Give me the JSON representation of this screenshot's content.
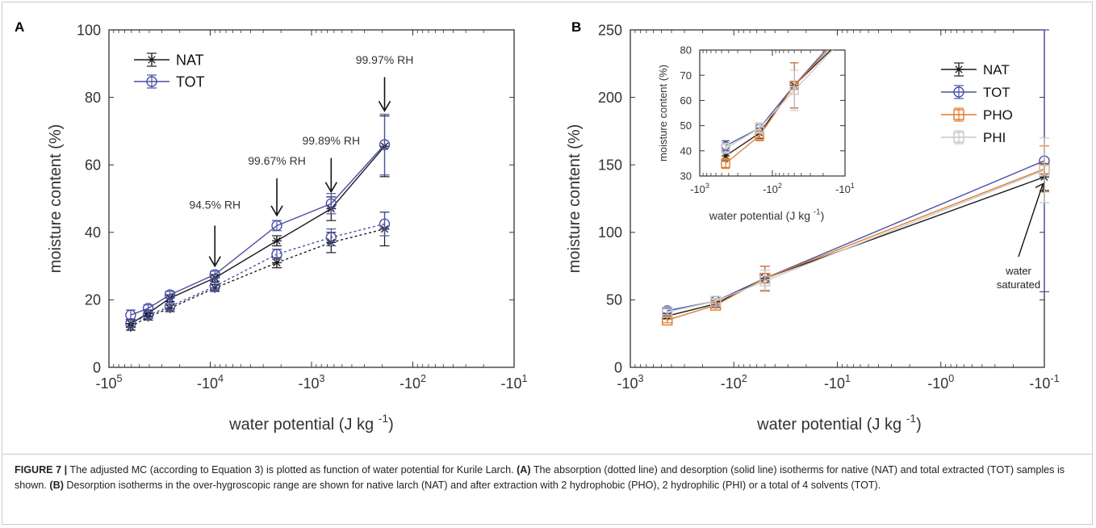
{
  "colors": {
    "NAT": "#1a1a1a",
    "TOT": "#4a4fa3",
    "PHO": "#e07b2e",
    "PHI": "#c8c8c8",
    "arrow": "#111111"
  },
  "chart_data": [
    {
      "panel": "A",
      "type": "line",
      "xlabel": "water potential (J kg",
      "xlabel_sup": "-1",
      "xlabel_close": ")",
      "ylabel": "moisture content (%)",
      "x_scale": "log of negative water potential",
      "xlim": [
        -100000,
        -10
      ],
      "ylim": [
        0,
        100
      ],
      "xticks": [
        {
          "v": -100000,
          "base": "-10",
          "exp": "5"
        },
        {
          "v": -10000,
          "base": "-10",
          "exp": "4"
        },
        {
          "v": -1000,
          "base": "-10",
          "exp": "3"
        },
        {
          "v": -100,
          "base": "-10",
          "exp": "2"
        },
        {
          "v": -10,
          "base": "-10",
          "exp": "1"
        }
      ],
      "yticks": [
        0,
        20,
        40,
        60,
        80,
        100
      ],
      "legend": [
        {
          "name": "NAT",
          "marker": "star"
        },
        {
          "name": "TOT",
          "marker": "circle"
        }
      ],
      "series": [
        {
          "name": "NAT",
          "curve": "desorption",
          "style": "solid",
          "marker": "star",
          "x": [
            -61000,
            -41000,
            -25000,
            -9000,
            -2200,
            -640,
            -190
          ],
          "y": [
            13,
            16,
            20.5,
            26.5,
            37.5,
            47,
            65.5
          ],
          "err": [
            1.2,
            1,
            1,
            1,
            1.5,
            3.5,
            9
          ]
        },
        {
          "name": "TOT",
          "curve": "desorption",
          "style": "solid",
          "marker": "circle",
          "x": [
            -61000,
            -41000,
            -25000,
            -9000,
            -2200,
            -640,
            -190
          ],
          "y": [
            15.5,
            17.5,
            21.5,
            27.5,
            42,
            48.5,
            66
          ],
          "err": [
            1.5,
            1,
            1,
            1,
            1.5,
            3,
            9
          ]
        },
        {
          "name": "NAT",
          "curve": "absorption",
          "style": "dotted",
          "marker": "star",
          "x": [
            -61000,
            -41000,
            -25000,
            -9000,
            -2200,
            -640,
            -190
          ],
          "y": [
            12,
            15,
            17.5,
            23.5,
            31,
            37,
            41
          ],
          "err": [
            1,
            1,
            1,
            1,
            1.5,
            3,
            5
          ]
        },
        {
          "name": "TOT",
          "curve": "absorption",
          "style": "dotted",
          "marker": "circle",
          "x": [
            -61000,
            -41000,
            -25000,
            -9000,
            -2200,
            -640,
            -190
          ],
          "y": [
            13,
            15.5,
            18,
            24,
            33.5,
            38.5,
            42.5
          ],
          "err": [
            1,
            1,
            1,
            1,
            1.5,
            2.5,
            3.5
          ]
        }
      ],
      "annotations": [
        {
          "text": "94.5% RH",
          "x": -9000,
          "y_arrow_tip": 30,
          "y_arrow_top": 42,
          "y_text": 47
        },
        {
          "text": "99.67% RH",
          "x": -2200,
          "y_arrow_tip": 45,
          "y_arrow_top": 56,
          "y_text": 60
        },
        {
          "text": "99.89% RH",
          "x": -640,
          "y_arrow_tip": 52,
          "y_arrow_top": 62,
          "y_text": 66
        },
        {
          "text": "99.97% RH",
          "x": -190,
          "y_arrow_tip": 76,
          "y_arrow_top": 86,
          "y_text": 90
        }
      ]
    },
    {
      "panel": "B",
      "type": "line",
      "xlabel": "water potential (J kg",
      "xlabel_sup": "-1",
      "xlabel_close": ")",
      "ylabel": "moisture content (%)",
      "x_scale": "log of negative water potential",
      "xlim": [
        -1000,
        -0.1
      ],
      "ylim": [
        0,
        250
      ],
      "xticks": [
        {
          "v": -1000,
          "base": "-10",
          "exp": "3"
        },
        {
          "v": -100,
          "base": "-10",
          "exp": "2"
        },
        {
          "v": -10,
          "base": "-10",
          "exp": "1"
        },
        {
          "v": -1,
          "base": "-10",
          "exp": "0"
        },
        {
          "v": -0.1,
          "base": "-10",
          "exp": "-1"
        }
      ],
      "yticks": [
        0,
        50,
        100,
        150,
        200,
        250
      ],
      "legend": [
        {
          "name": "NAT",
          "marker": "star"
        },
        {
          "name": "TOT",
          "marker": "circle"
        },
        {
          "name": "PHO",
          "marker": "square"
        },
        {
          "name": "PHI",
          "marker": "square"
        }
      ],
      "series": [
        {
          "name": "NAT",
          "marker": "star",
          "x": [
            -440,
            -150,
            -50,
            -0.1
          ],
          "y": [
            38,
            47,
            66,
            141
          ],
          "err": [
            2,
            2,
            9,
            10
          ]
        },
        {
          "name": "TOT",
          "marker": "circle",
          "x": [
            -440,
            -150,
            -50,
            -0.1
          ],
          "y": [
            42,
            49,
            66,
            153
          ],
          "err": [
            2,
            2,
            9,
            97
          ]
        },
        {
          "name": "PHO",
          "marker": "square",
          "x": [
            -440,
            -150,
            -50,
            -0.1
          ],
          "y": [
            35,
            46,
            66,
            147
          ],
          "err": [
            2,
            2,
            9,
            17
          ]
        },
        {
          "name": "PHI",
          "marker": "square",
          "x": [
            -440,
            -150,
            -50,
            -0.1
          ],
          "y": [
            41,
            49,
            64,
            146
          ],
          "err": [
            2,
            2,
            8,
            24
          ]
        }
      ],
      "annotations": [
        {
          "text_lines": [
            "water",
            "saturated"
          ],
          "x": -0.1,
          "y_arrow_tip": 138
        }
      ],
      "inset": {
        "xlabel": "water potential (J kg",
        "xlabel_sup": "-1",
        "xlabel_close": ")",
        "ylabel": "moisture content (%)",
        "xlim": [
          -1000,
          -10
        ],
        "ylim": [
          30,
          80
        ],
        "xticks": [
          {
            "v": -1000,
            "base": "-10",
            "exp": "3"
          },
          {
            "v": -100,
            "base": "-10",
            "exp": "2"
          },
          {
            "v": -10,
            "base": "-10",
            "exp": "1"
          }
        ],
        "yticks": [
          30,
          40,
          50,
          60,
          70,
          80
        ]
      }
    }
  ],
  "caption": {
    "label": "FIGURE 7 |",
    "text1": " The adjusted MC (according to Equation 3) is plotted as function of water potential for Kurile Larch. ",
    "a_label": "(A)",
    "text2": " The absorption (dotted line) and desorption (solid line) isotherms for native (NAT) and total extracted (TOT) samples is shown. ",
    "b_label": "(B)",
    "text3": " Desorption isotherms in the over-hygroscopic range are shown for native larch (NAT) and after extraction with 2 hydrophobic (PHO), 2 hydrophilic (PHI) or a total of 4 solvents (TOT)."
  }
}
